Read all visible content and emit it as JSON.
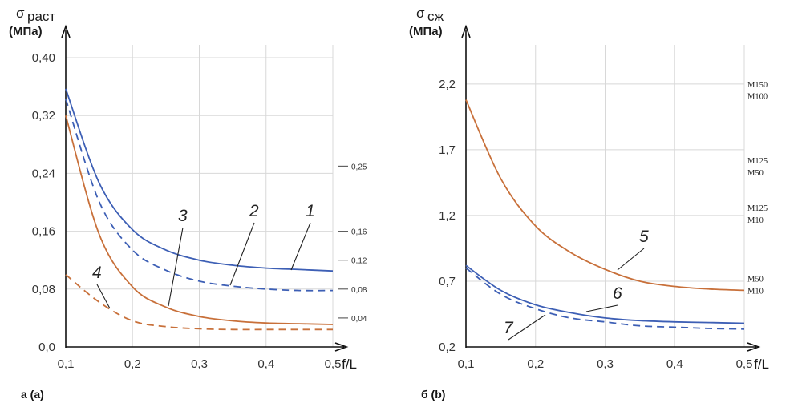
{
  "chart_data": [
    {
      "type": "line",
      "panel_label": "a (a)",
      "ylabel_symbol": "σ",
      "ylabel_subscript": "раст",
      "ylabel_unit": "(МПа)",
      "xlabel": "f/L",
      "xlim": [
        0.1,
        0.5
      ],
      "ylim": [
        0.0,
        0.4
      ],
      "x_ticks": [
        "0,1",
        "0,2",
        "0,3",
        "0,4",
        "0,5"
      ],
      "y_ticks": [
        "0,0",
        "0,08",
        "0,16",
        "0,24",
        "0,32",
        "0,40"
      ],
      "grid": true,
      "colors": {
        "blue": "#3d5fb5",
        "orange": "#c8703a"
      },
      "series": [
        {
          "label": "1",
          "color": "#3d5fb5",
          "dash": false,
          "x": [
            0.1,
            0.15,
            0.2,
            0.25,
            0.3,
            0.35,
            0.4,
            0.45,
            0.5
          ],
          "y": [
            0.357,
            0.227,
            0.162,
            0.134,
            0.12,
            0.113,
            0.109,
            0.107,
            0.105
          ]
        },
        {
          "label": "2",
          "color": "#3d5fb5",
          "dash": true,
          "x": [
            0.1,
            0.15,
            0.2,
            0.25,
            0.3,
            0.35,
            0.4,
            0.45,
            0.5
          ],
          "y": [
            0.343,
            0.201,
            0.134,
            0.106,
            0.091,
            0.084,
            0.08,
            0.078,
            0.078
          ]
        },
        {
          "label": "3",
          "color": "#c8703a",
          "dash": false,
          "x": [
            0.1,
            0.15,
            0.2,
            0.25,
            0.3,
            0.35,
            0.4,
            0.45,
            0.5
          ],
          "y": [
            0.32,
            0.156,
            0.083,
            0.055,
            0.042,
            0.036,
            0.033,
            0.032,
            0.031
          ]
        },
        {
          "label": "4",
          "color": "#c8703a",
          "dash": true,
          "x": [
            0.1,
            0.15,
            0.2,
            0.25,
            0.3,
            0.35,
            0.4,
            0.45,
            0.5
          ],
          "y": [
            0.1,
            0.062,
            0.036,
            0.028,
            0.025,
            0.024,
            0.024,
            0.024,
            0.024
          ]
        }
      ],
      "reference_marks": [
        {
          "label": "0,25",
          "y": 0.25
        },
        {
          "label": "0,16",
          "y": 0.16
        },
        {
          "label": "0,12",
          "y": 0.12
        },
        {
          "label": "0,08",
          "y": 0.08
        },
        {
          "label": "0,04",
          "y": 0.04
        }
      ]
    },
    {
      "type": "line",
      "panel_label": "б (b)",
      "ylabel_symbol": "σ",
      "ylabel_subscript": "сж",
      "ylabel_unit": "(МПа)",
      "xlabel": "f/L",
      "xlim": [
        0.1,
        0.5
      ],
      "ylim": [
        0.2,
        2.4
      ],
      "x_ticks": [
        "0,1",
        "0,2",
        "0,3",
        "0,4",
        "0,5"
      ],
      "y_ticks": [
        "0,2",
        "0,7",
        "1,2",
        "1,7",
        "2,2"
      ],
      "grid": true,
      "colors": {
        "blue": "#3d5fb5",
        "orange": "#c8703a"
      },
      "series": [
        {
          "label": "5",
          "color": "#c8703a",
          "dash": false,
          "x": [
            0.1,
            0.15,
            0.2,
            0.25,
            0.3,
            0.35,
            0.4,
            0.45,
            0.5
          ],
          "y": [
            2.08,
            1.48,
            1.12,
            0.92,
            0.79,
            0.7,
            0.66,
            0.64,
            0.63
          ]
        },
        {
          "label": "6",
          "color": "#3d5fb5",
          "dash": false,
          "x": [
            0.1,
            0.15,
            0.2,
            0.25,
            0.3,
            0.35,
            0.4,
            0.45,
            0.5
          ],
          "y": [
            0.82,
            0.63,
            0.52,
            0.46,
            0.42,
            0.4,
            0.39,
            0.385,
            0.38
          ]
        },
        {
          "label": "7",
          "color": "#3d5fb5",
          "dash": true,
          "x": [
            0.1,
            0.15,
            0.2,
            0.25,
            0.3,
            0.35,
            0.4,
            0.45,
            0.5
          ],
          "y": [
            0.8,
            0.6,
            0.49,
            0.42,
            0.39,
            0.36,
            0.35,
            0.34,
            0.335
          ]
        }
      ],
      "grade_labels": [
        {
          "label": "М150",
          "y": 2.2
        },
        {
          "label": "М100",
          "y": 2.11
        },
        {
          "label": "М125",
          "y": 1.62
        },
        {
          "label": "М50",
          "y": 1.53
        },
        {
          "label": "М125",
          "y": 1.26
        },
        {
          "label": "М10",
          "y": 1.17
        },
        {
          "label": "М50",
          "y": 0.72
        },
        {
          "label": "М10",
          "y": 0.63
        }
      ]
    }
  ]
}
